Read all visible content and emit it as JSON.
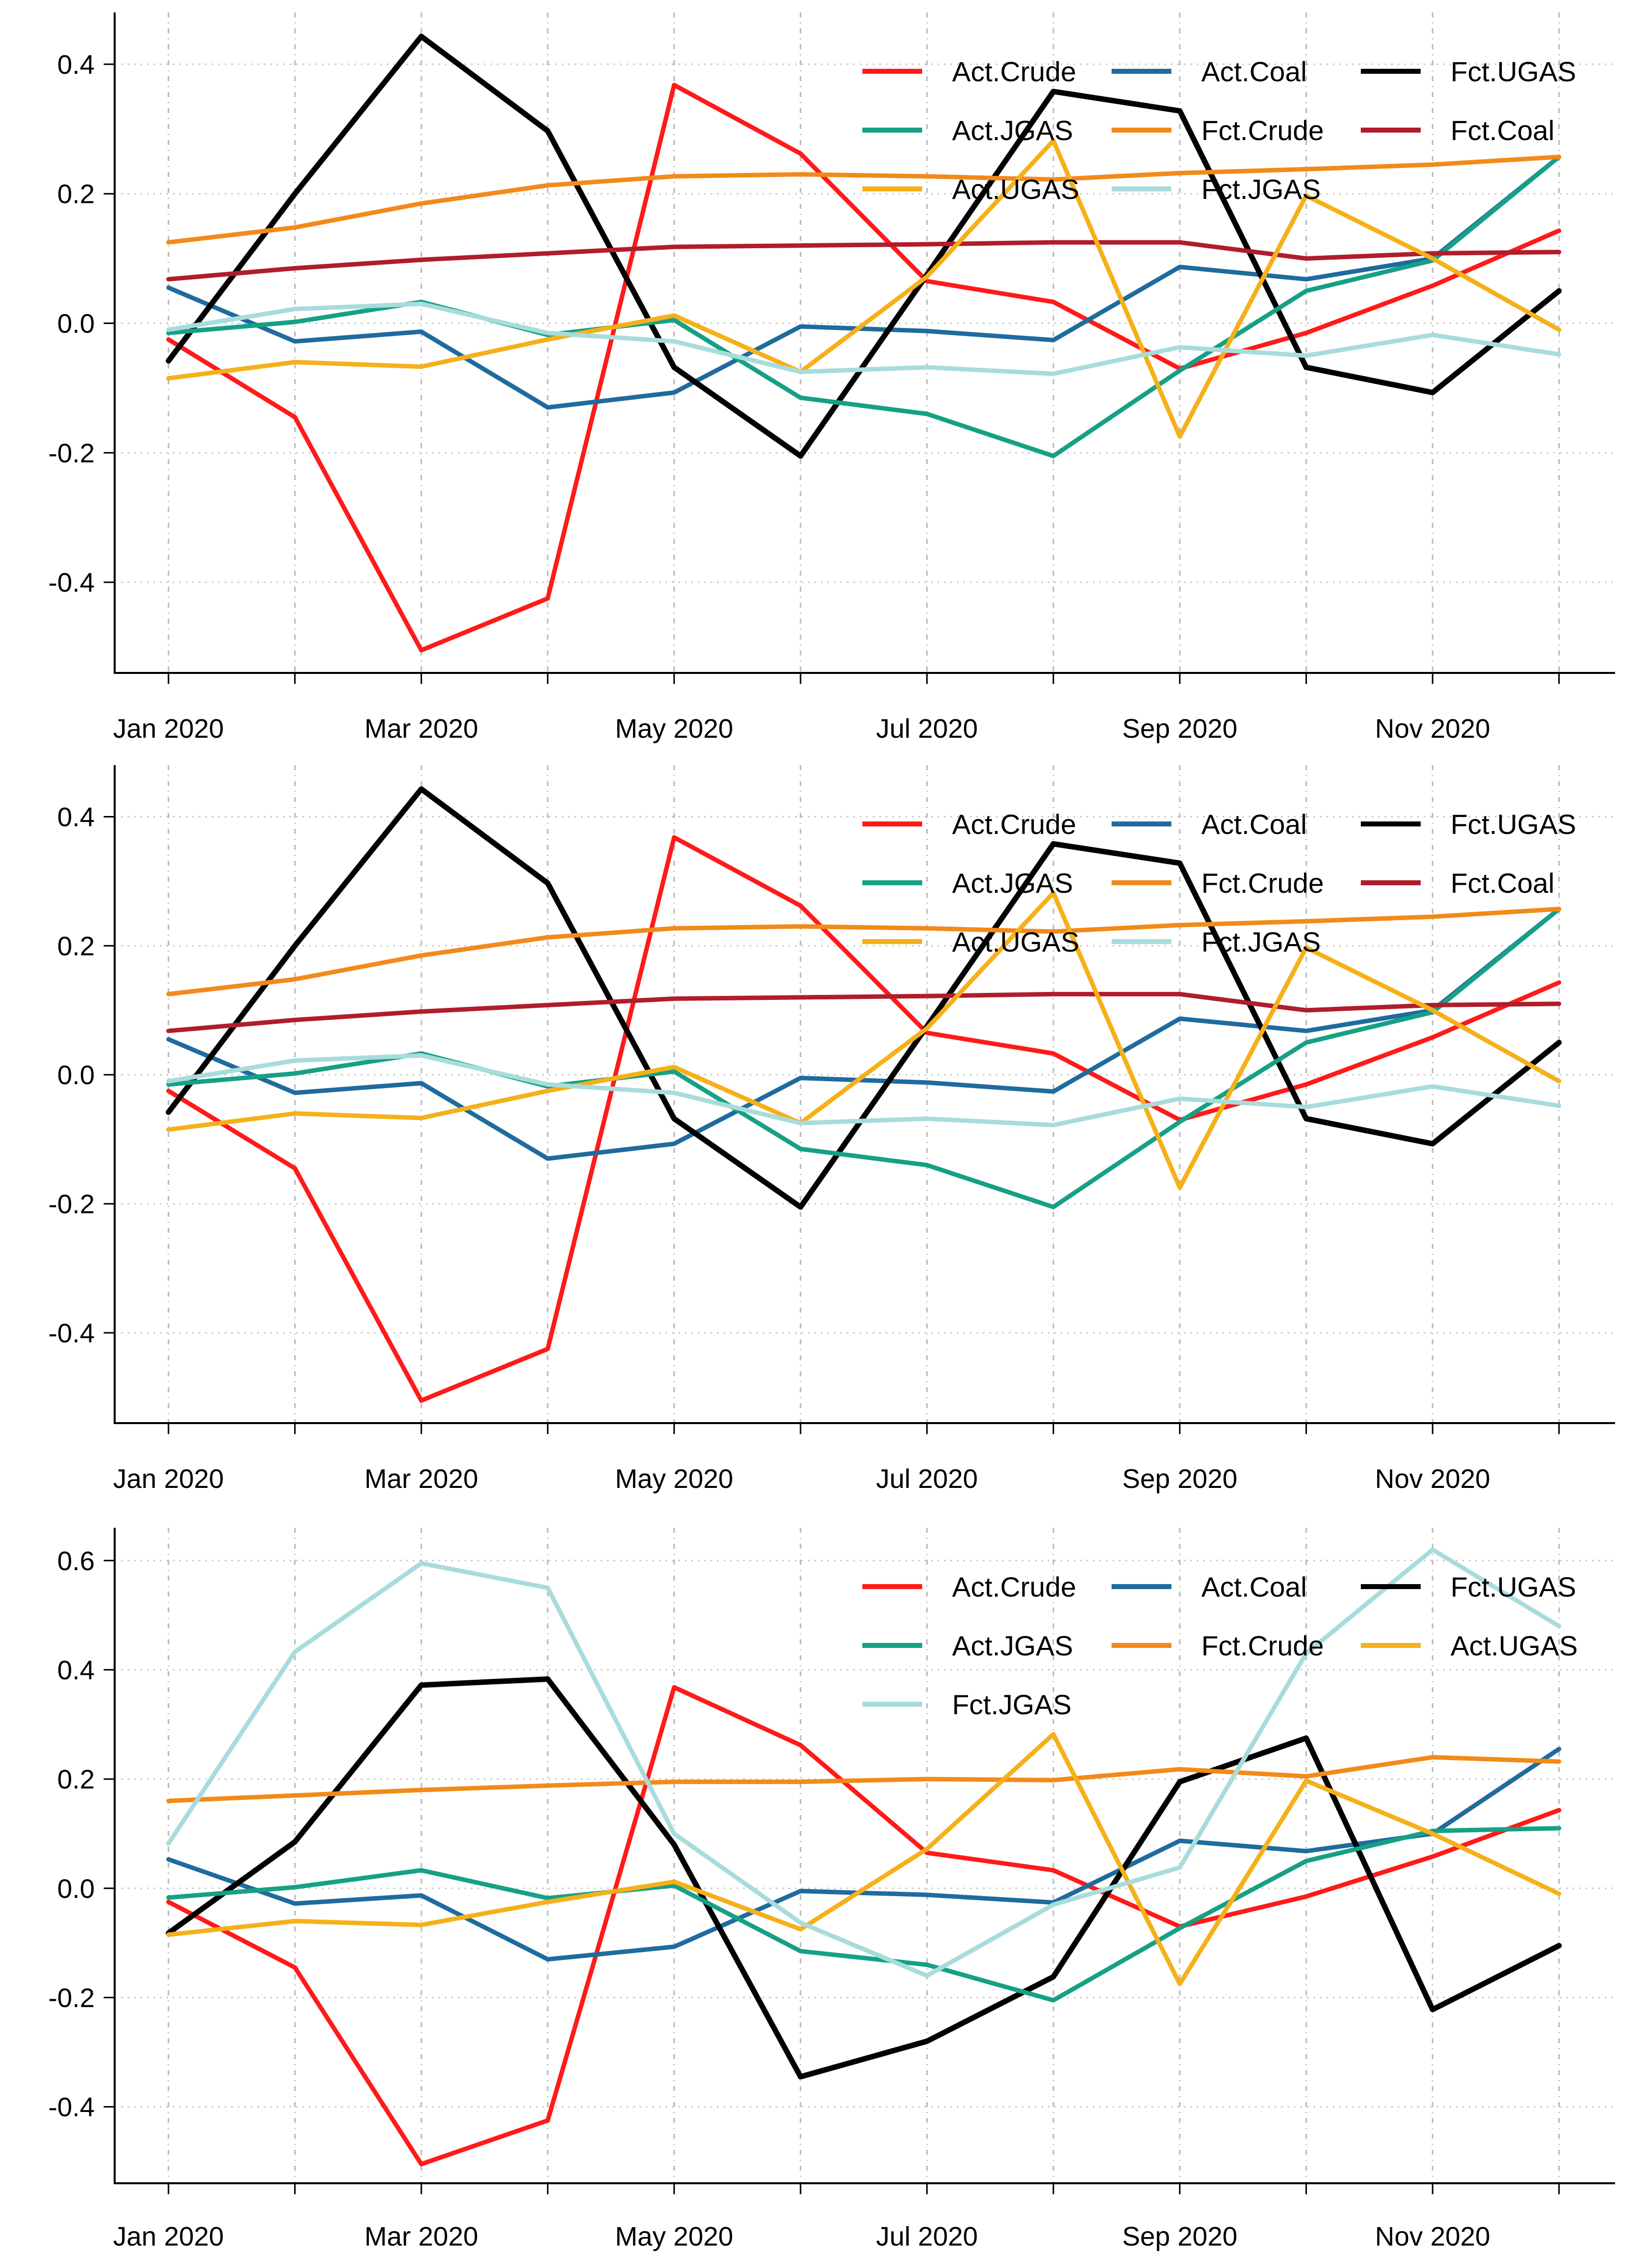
{
  "chart_data": [
    {
      "type": "line",
      "title": "",
      "xlabel": "",
      "ylabel": "",
      "x": [
        "Jan 2020",
        "Feb 2020",
        "Mar 2020",
        "Apr 2020",
        "May 2020",
        "Jun 2020",
        "Jul 2020",
        "Aug 2020",
        "Sep 2020",
        "Oct 2020",
        "Nov 2020",
        "Dec 2020"
      ],
      "x_tick_labels": [
        "Jan 2020",
        "Mar 2020",
        "May 2020",
        "Jul 2020",
        "Sep 2020",
        "Nov 2020"
      ],
      "y_ticks": [
        "-0.4",
        "-0.2",
        "0.0",
        "0.2",
        "0.4"
      ],
      "ylim": [
        -0.54,
        0.48
      ],
      "grid": true,
      "legend_position": "top-right",
      "series": [
        {
          "name": "Act.Crude",
          "color": "#ff1a1a",
          "values": [
            -0.025,
            -0.145,
            -0.505,
            -0.425,
            0.368,
            0.262,
            0.065,
            0.033,
            -0.07,
            -0.015,
            0.058,
            0.143
          ]
        },
        {
          "name": "Act.Coal",
          "color": "#1f6b9e",
          "values": [
            0.055,
            -0.028,
            -0.013,
            -0.13,
            -0.107,
            -0.005,
            -0.012,
            -0.026,
            0.087,
            0.068,
            0.1,
            0.257
          ]
        },
        {
          "name": "Fct.UGAS",
          "color": "#000000",
          "values": [
            -0.058,
            0.2,
            0.443,
            0.297,
            -0.068,
            -0.205,
            0.075,
            0.358,
            0.328,
            -0.068,
            -0.107,
            0.05
          ]
        },
        {
          "name": "Act.JGAS",
          "color": "#16a085",
          "values": [
            -0.015,
            0.002,
            0.033,
            -0.018,
            0.005,
            -0.115,
            -0.14,
            -0.205,
            -0.073,
            0.05,
            0.097,
            0.257
          ]
        },
        {
          "name": "Fct.Crude",
          "color": "#f28a1a",
          "values": [
            0.125,
            0.148,
            0.185,
            0.213,
            0.227,
            0.23,
            0.227,
            0.222,
            0.232,
            0.238,
            0.245,
            0.257
          ]
        },
        {
          "name": "Fct.Coal",
          "color": "#b01d2b",
          "values": [
            0.068,
            0.085,
            0.098,
            0.108,
            0.118,
            0.12,
            0.122,
            0.125,
            0.125,
            0.1,
            0.108,
            0.11
          ]
        },
        {
          "name": "Act.UGAS",
          "color": "#f5b01a",
          "values": [
            -0.085,
            -0.06,
            -0.067,
            -0.025,
            0.012,
            -0.075,
            0.072,
            0.282,
            -0.175,
            0.197,
            0.1,
            -0.01
          ]
        },
        {
          "name": "Fct.JGAS",
          "color": "#a8dcdc",
          "values": [
            -0.01,
            0.022,
            0.03,
            -0.015,
            -0.028,
            -0.075,
            -0.068,
            -0.078,
            -0.037,
            -0.05,
            -0.018,
            -0.048
          ]
        }
      ]
    },
    {
      "type": "line",
      "title": "",
      "xlabel": "",
      "ylabel": "",
      "x": [
        "Jan 2020",
        "Feb 2020",
        "Mar 2020",
        "Apr 2020",
        "May 2020",
        "Jun 2020",
        "Jul 2020",
        "Aug 2020",
        "Sep 2020",
        "Oct 2020",
        "Nov 2020",
        "Dec 2020"
      ],
      "x_tick_labels": [
        "Jan 2020",
        "Mar 2020",
        "May 2020",
        "Jul 2020",
        "Sep 2020",
        "Nov 2020"
      ],
      "y_ticks": [
        "-0.4",
        "-0.2",
        "0.0",
        "0.2",
        "0.4"
      ],
      "ylim": [
        -0.54,
        0.48
      ],
      "grid": true,
      "legend_position": "top-right",
      "series": [
        {
          "name": "Act.Crude",
          "color": "#ff1a1a",
          "values": [
            -0.025,
            -0.145,
            -0.505,
            -0.425,
            0.368,
            0.262,
            0.065,
            0.033,
            -0.07,
            -0.015,
            0.058,
            0.143
          ]
        },
        {
          "name": "Act.Coal",
          "color": "#1f6b9e",
          "values": [
            0.055,
            -0.028,
            -0.013,
            -0.13,
            -0.107,
            -0.005,
            -0.012,
            -0.026,
            0.087,
            0.068,
            0.1,
            0.257
          ]
        },
        {
          "name": "Fct.UGAS",
          "color": "#000000",
          "values": [
            -0.058,
            0.2,
            0.443,
            0.297,
            -0.068,
            -0.205,
            0.075,
            0.358,
            0.328,
            -0.068,
            -0.107,
            0.05
          ]
        },
        {
          "name": "Act.JGAS",
          "color": "#16a085",
          "values": [
            -0.015,
            0.002,
            0.033,
            -0.018,
            0.005,
            -0.115,
            -0.14,
            -0.205,
            -0.073,
            0.05,
            0.097,
            0.257
          ]
        },
        {
          "name": "Fct.Crude",
          "color": "#f28a1a",
          "values": [
            0.125,
            0.148,
            0.185,
            0.213,
            0.227,
            0.23,
            0.227,
            0.222,
            0.232,
            0.238,
            0.245,
            0.257
          ]
        },
        {
          "name": "Fct.Coal",
          "color": "#b01d2b",
          "values": [
            0.068,
            0.085,
            0.098,
            0.108,
            0.118,
            0.12,
            0.122,
            0.125,
            0.125,
            0.1,
            0.108,
            0.11
          ]
        },
        {
          "name": "Act.UGAS",
          "color": "#f5b01a",
          "values": [
            -0.085,
            -0.06,
            -0.067,
            -0.025,
            0.012,
            -0.075,
            0.072,
            0.282,
            -0.175,
            0.197,
            0.1,
            -0.01
          ]
        },
        {
          "name": "Fct.JGAS",
          "color": "#a8dcdc",
          "values": [
            -0.01,
            0.022,
            0.03,
            -0.015,
            -0.028,
            -0.075,
            -0.068,
            -0.078,
            -0.037,
            -0.05,
            -0.018,
            -0.048
          ]
        }
      ]
    },
    {
      "type": "line",
      "title": "",
      "xlabel": "",
      "ylabel": "",
      "x": [
        "Jan 2020",
        "Feb 2020",
        "Mar 2020",
        "Apr 2020",
        "May 2020",
        "Jun 2020",
        "Jul 2020",
        "Aug 2020",
        "Sep 2020",
        "Oct 2020",
        "Nov 2020",
        "Dec 2020"
      ],
      "x_tick_labels": [
        "Jan 2020",
        "Mar 2020",
        "May 2020",
        "Jul 2020",
        "Sep 2020",
        "Nov 2020"
      ],
      "y_ticks": [
        "-0.4",
        "-0.2",
        "0.0",
        "0.2",
        "0.4",
        "0.6"
      ],
      "ylim": [
        -0.54,
        0.66
      ],
      "grid": true,
      "legend_position": "top-right",
      "series": [
        {
          "name": "Act.Crude",
          "color": "#ff1a1a",
          "values": [
            -0.025,
            -0.145,
            -0.505,
            -0.425,
            0.368,
            0.262,
            0.065,
            0.033,
            -0.07,
            -0.015,
            0.058,
            0.143
          ]
        },
        {
          "name": "Act.Coal",
          "color": "#1f6b9e",
          "values": [
            0.053,
            -0.028,
            -0.013,
            -0.13,
            -0.107,
            -0.005,
            -0.012,
            -0.026,
            0.087,
            0.068,
            0.1,
            0.255
          ]
        },
        {
          "name": "Fct.UGAS",
          "color": "#000000",
          "values": [
            -0.082,
            0.085,
            0.372,
            0.383,
            0.08,
            -0.345,
            -0.28,
            -0.162,
            0.195,
            0.275,
            -0.222,
            -0.105
          ]
        },
        {
          "name": "Act.JGAS",
          "color": "#16a085",
          "values": [
            -0.017,
            0.002,
            0.033,
            -0.018,
            0.005,
            -0.115,
            -0.14,
            -0.205,
            -0.073,
            0.05,
            0.105,
            0.11
          ]
        },
        {
          "name": "Fct.Crude",
          "color": "#f28a1a",
          "values": [
            0.16,
            0.17,
            0.18,
            0.188,
            0.195,
            0.195,
            0.2,
            0.198,
            0.218,
            0.205,
            0.24,
            0.232
          ]
        },
        {
          "name": "Act.UGAS",
          "color": "#f5b01a",
          "values": [
            -0.085,
            -0.06,
            -0.067,
            -0.025,
            0.012,
            -0.075,
            0.072,
            0.282,
            -0.175,
            0.197,
            0.1,
            -0.01
          ]
        },
        {
          "name": "Fct.JGAS",
          "color": "#a8dcdc",
          "values": [
            0.082,
            0.433,
            0.595,
            0.55,
            0.1,
            -0.063,
            -0.16,
            -0.03,
            0.038,
            0.43,
            0.62,
            0.48
          ]
        }
      ]
    }
  ]
}
